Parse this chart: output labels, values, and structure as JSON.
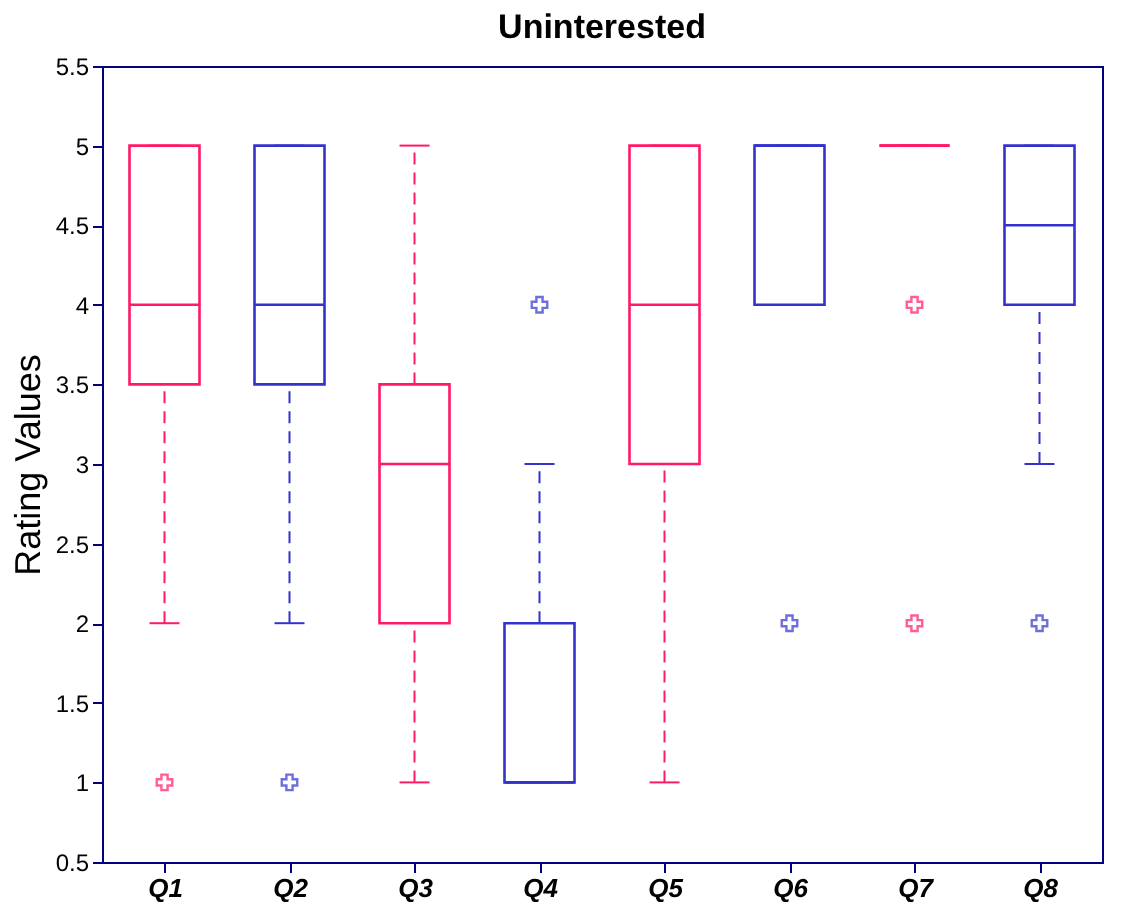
{
  "chart_data": {
    "type": "box",
    "title": "Uninterested",
    "ylabel": "Rating Values",
    "categories": [
      "Q1",
      "Q2",
      "Q3",
      "Q4",
      "Q5",
      "Q6",
      "Q7",
      "Q8"
    ],
    "boxes": [
      {
        "low": 2,
        "q1": 3.5,
        "median": 4,
        "q3": 5,
        "high": 5,
        "outliers": [
          1
        ]
      },
      {
        "low": 2,
        "q1": 3.5,
        "median": 4,
        "q3": 5,
        "high": 5,
        "outliers": [
          1
        ]
      },
      {
        "low": 1,
        "q1": 2,
        "median": 3,
        "q3": 3.5,
        "high": 5
      },
      {
        "low": 1,
        "q1": 1,
        "median": 1,
        "q3": 2,
        "high": 3,
        "outliers": [
          4
        ]
      },
      {
        "low": 1,
        "q1": 3,
        "median": 4,
        "q3": 5,
        "high": 5
      },
      {
        "low": 4,
        "q1": 4,
        "median": 5,
        "q3": 5,
        "high": 5,
        "outliers": [
          2
        ]
      },
      {
        "low": 5,
        "q1": 5,
        "median": 5,
        "q3": 5,
        "high": 5,
        "outliers": [
          4,
          2
        ]
      },
      {
        "low": 3,
        "q1": 4,
        "median": 4.5,
        "q3": 5,
        "high": 5,
        "outliers": [
          2
        ]
      }
    ],
    "colors": [
      "#ff1a66",
      "#3333cc",
      "#ff1a66",
      "#3333cc",
      "#ff1a66",
      "#3333cc",
      "#ff1a66",
      "#3333cc"
    ],
    "ylim": [
      0.5,
      5.5
    ],
    "yticks": [
      0.5,
      1,
      1.5,
      2,
      2.5,
      3,
      3.5,
      4,
      4.5,
      5,
      5.5
    ],
    "grid": false,
    "marker": "cross",
    "line_style": "dashed"
  }
}
